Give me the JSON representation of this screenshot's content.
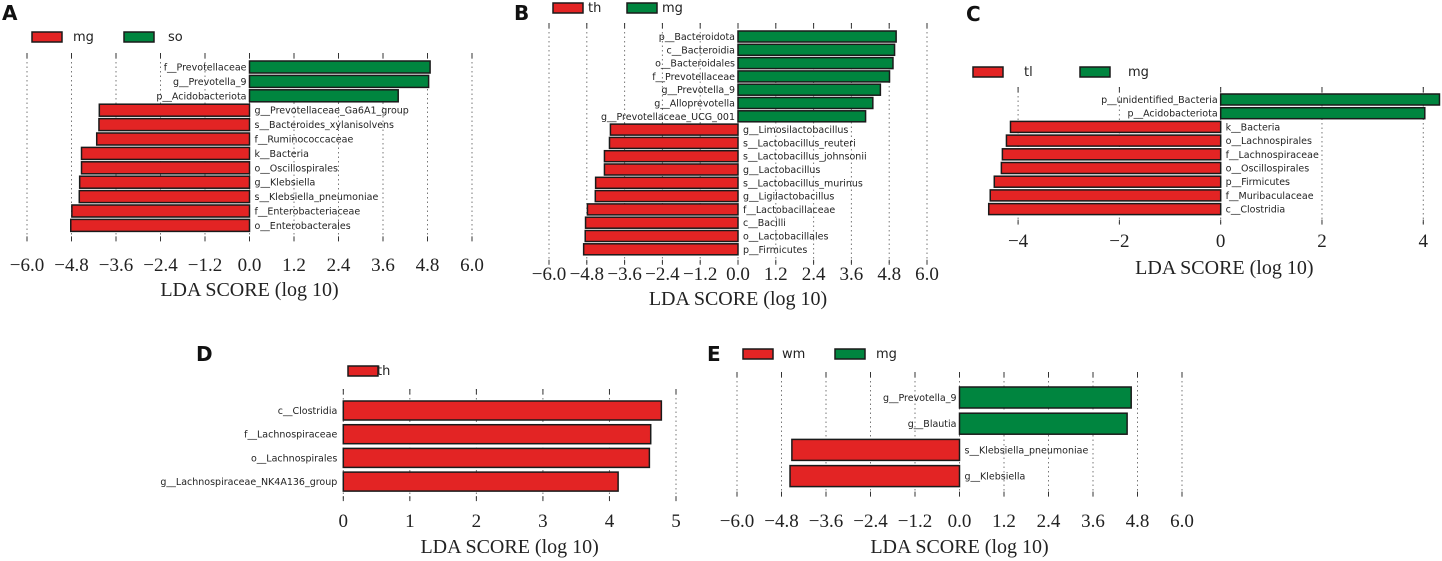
{
  "colors": {
    "red": "#e32424",
    "green": "#00853f"
  },
  "chart_data": [
    {
      "panel": "A",
      "type": "bar",
      "orientation": "horizontal",
      "legend": [
        {
          "label": "mg",
          "color": "#e32424"
        },
        {
          "label": "so",
          "color": "#00853f"
        }
      ],
      "xlabel": "LDA SCORE (log 10)",
      "xlim": [
        -6.0,
        6.0
      ],
      "xticks": [
        -6.0,
        -4.8,
        -3.6,
        -2.4,
        -1.2,
        0.0,
        1.2,
        2.4,
        3.6,
        4.8,
        6.0
      ],
      "xtick_labels": [
        "−6.0",
        "−4.8",
        "−3.6",
        "−2.4",
        "−1.2",
        "0.0",
        "1.2",
        "2.4",
        "3.6",
        "4.8",
        "6.0"
      ],
      "grid": true,
      "bars": [
        {
          "label": "f__Prevotellaceae",
          "value": 4.87,
          "group": "so"
        },
        {
          "label": "g__Prevotella_9",
          "value": 4.83,
          "group": "so"
        },
        {
          "label": "p__Acidobacteriota",
          "value": 4.01,
          "group": "so"
        },
        {
          "label": "g__Prevotellaceae_Ga6A1_group",
          "value": -4.05,
          "group": "mg"
        },
        {
          "label": "s__Bacteroides_xylanisolvens",
          "value": -4.06,
          "group": "mg"
        },
        {
          "label": "f__Ruminococcaceae",
          "value": -4.12,
          "group": "mg"
        },
        {
          "label": "k__Bacteria",
          "value": -4.53,
          "group": "mg"
        },
        {
          "label": "o__Oscillospirales",
          "value": -4.53,
          "group": "mg"
        },
        {
          "label": "g__Klebsiella",
          "value": -4.58,
          "group": "mg"
        },
        {
          "label": "s__Klebsiella_pneumoniae",
          "value": -4.59,
          "group": "mg"
        },
        {
          "label": "f__Enterobacteriaceae",
          "value": -4.79,
          "group": "mg"
        },
        {
          "label": "o__Enterobacterales",
          "value": -4.82,
          "group": "mg"
        }
      ]
    },
    {
      "panel": "B",
      "type": "bar",
      "orientation": "horizontal",
      "legend": [
        {
          "label": "th",
          "color": "#e32424"
        },
        {
          "label": "mg",
          "color": "#00853f"
        }
      ],
      "xlabel": "LDA SCORE (log 10)",
      "xlim": [
        -6.0,
        6.0
      ],
      "xticks": [
        -6.0,
        -4.8,
        -3.6,
        -2.4,
        -1.2,
        0.0,
        1.2,
        2.4,
        3.6,
        4.8,
        6.0
      ],
      "xtick_labels": [
        "−6.0",
        "−4.8",
        "−3.6",
        "−2.4",
        "−1.2",
        "0.0",
        "1.2",
        "2.4",
        "3.6",
        "4.8",
        "6.0"
      ],
      "grid": true,
      "bars": [
        {
          "label": "p__Bacteroidota",
          "value": 5.02,
          "group": "mg"
        },
        {
          "label": "c__Bacteroidia",
          "value": 4.97,
          "group": "mg"
        },
        {
          "label": "o__Bacteroidales",
          "value": 4.92,
          "group": "mg"
        },
        {
          "label": "f__Prevotellaceae",
          "value": 4.81,
          "group": "mg"
        },
        {
          "label": "g__Prevotella_9",
          "value": 4.52,
          "group": "mg"
        },
        {
          "label": "g__Alloprevotella",
          "value": 4.28,
          "group": "mg"
        },
        {
          "label": "g__Prevotellaceae_UCG_001",
          "value": 4.05,
          "group": "mg"
        },
        {
          "label": "g__Limosilactobacillus",
          "value": -4.05,
          "group": "th"
        },
        {
          "label": "s__Lactobacillus_reuteri",
          "value": -4.08,
          "group": "th"
        },
        {
          "label": "s__Lactobacillus_johnsonii",
          "value": -4.24,
          "group": "th"
        },
        {
          "label": "g__Lactobacillus",
          "value": -4.24,
          "group": "th"
        },
        {
          "label": "s__Lactobacillus_murinus",
          "value": -4.52,
          "group": "th"
        },
        {
          "label": "g__Ligilactobacillus",
          "value": -4.53,
          "group": "th"
        },
        {
          "label": "f__Lactobacillaceae",
          "value": -4.78,
          "group": "th"
        },
        {
          "label": "c__Bacilli",
          "value": -4.84,
          "group": "th"
        },
        {
          "label": "o__Lactobacillales",
          "value": -4.85,
          "group": "th"
        },
        {
          "label": "p__Firmicutes",
          "value": -4.9,
          "group": "th"
        }
      ]
    },
    {
      "panel": "C",
      "type": "bar",
      "orientation": "horizontal",
      "legend": [
        {
          "label": "tl",
          "color": "#e32424"
        },
        {
          "label": "mg",
          "color": "#00853f"
        }
      ],
      "xlabel": "LDA SCORE (log 10)",
      "xlim": [
        -4.6,
        4.35
      ],
      "xticks": [
        -4,
        -2,
        0,
        2,
        4
      ],
      "xtick_labels": [
        "−4",
        "−2",
        "0",
        "2",
        "4"
      ],
      "grid": true,
      "bars": [
        {
          "label": "p__unidentified_Bacteria",
          "value": 4.32,
          "group": "mg"
        },
        {
          "label": "p__Acidobacteriota",
          "value": 4.03,
          "group": "mg"
        },
        {
          "label": "k__Bacteria",
          "value": -4.15,
          "group": "tl"
        },
        {
          "label": "o__Lachnospirales",
          "value": -4.23,
          "group": "tl"
        },
        {
          "label": "f__Lachnospiraceae",
          "value": -4.31,
          "group": "tl"
        },
        {
          "label": "o__Oscillospirales",
          "value": -4.33,
          "group": "tl"
        },
        {
          "label": "p__Firmicutes",
          "value": -4.47,
          "group": "tl"
        },
        {
          "label": "f__Muribaculaceae",
          "value": -4.55,
          "group": "tl"
        },
        {
          "label": "c__Clostridia",
          "value": -4.58,
          "group": "tl"
        }
      ]
    },
    {
      "panel": "D",
      "type": "bar",
      "orientation": "horizontal",
      "legend": [
        {
          "label": "th",
          "color": "#e32424"
        }
      ],
      "xlabel": "LDA SCORE (log 10)",
      "xlim": [
        0,
        5
      ],
      "xticks": [
        0,
        1,
        2,
        3,
        4,
        5
      ],
      "xtick_labels": [
        "0",
        "1",
        "2",
        "3",
        "4",
        "5"
      ],
      "grid": true,
      "bars": [
        {
          "label": "c__Clostridia",
          "value": 4.78,
          "group": "th"
        },
        {
          "label": "f__Lachnospiraceae",
          "value": 4.62,
          "group": "th"
        },
        {
          "label": "o__Lachnospirales",
          "value": 4.6,
          "group": "th"
        },
        {
          "label": "g__Lachnospiraceae_NK4A136_group",
          "value": 4.13,
          "group": "th"
        }
      ]
    },
    {
      "panel": "E",
      "type": "bar",
      "orientation": "horizontal",
      "legend": [
        {
          "label": "wm",
          "color": "#e32424"
        },
        {
          "label": "mg",
          "color": "#00853f"
        }
      ],
      "xlabel": "LDA SCORE (log 10)",
      "xlim": [
        -6.0,
        6.0
      ],
      "xticks": [
        -6.0,
        -4.8,
        -3.6,
        -2.4,
        -1.2,
        0.0,
        1.2,
        2.4,
        3.6,
        4.8,
        6.0
      ],
      "xtick_labels": [
        "−6.0",
        "−4.8",
        "−3.6",
        "−2.4",
        "−1.2",
        "0.0",
        "1.2",
        "2.4",
        "3.6",
        "4.8",
        "6.0"
      ],
      "grid": true,
      "bars": [
        {
          "label": "g__Prevotella_9",
          "value": 4.63,
          "group": "mg"
        },
        {
          "label": "g__Blautia",
          "value": 4.52,
          "group": "mg"
        },
        {
          "label": "s__Klebsiella_pneumoniae",
          "value": -4.52,
          "group": "wm"
        },
        {
          "label": "g__Klebsiella",
          "value": -4.57,
          "group": "wm"
        }
      ]
    }
  ]
}
